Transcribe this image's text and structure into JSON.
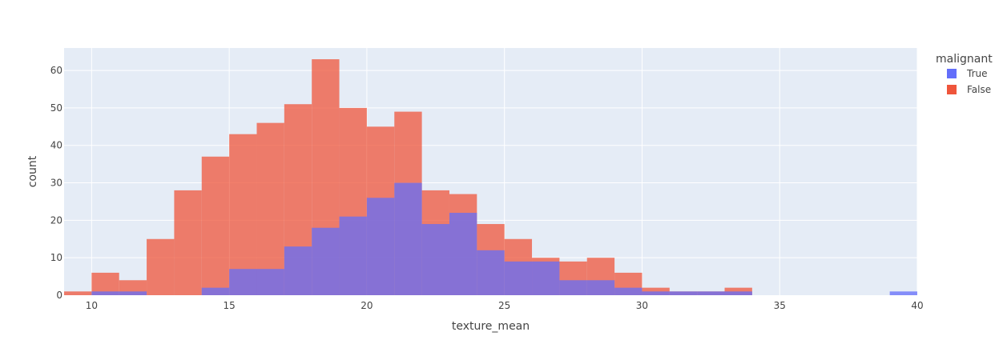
{
  "chart_data": {
    "type": "bar",
    "barmode": "overlay",
    "xlabel": "texture_mean",
    "ylabel": "count",
    "xlim": [
      9,
      40
    ],
    "ylim": [
      0,
      66
    ],
    "x_ticks": [
      10,
      15,
      20,
      25,
      30,
      35,
      40
    ],
    "y_ticks": [
      0,
      10,
      20,
      30,
      40,
      50,
      60
    ],
    "bin_edges": [
      9,
      10,
      11,
      12,
      13,
      14,
      15,
      16,
      17,
      18,
      19,
      20,
      21,
      22,
      23,
      24,
      25,
      26,
      27,
      28,
      29,
      30,
      31,
      32,
      33,
      34,
      35,
      36,
      37,
      38,
      39,
      40
    ],
    "legend_title": "malignant",
    "legend_position": "top-right",
    "grid": true,
    "series": [
      {
        "name": "False",
        "color": "#EF553B",
        "values": [
          1,
          6,
          4,
          15,
          28,
          37,
          43,
          46,
          51,
          63,
          50,
          45,
          49,
          28,
          27,
          19,
          15,
          10,
          9,
          10,
          6,
          2,
          1,
          1,
          2,
          0,
          0,
          0,
          0,
          0,
          0
        ]
      },
      {
        "name": "True",
        "color": "#636EFA",
        "values": [
          0,
          1,
          1,
          0,
          0,
          2,
          7,
          7,
          13,
          18,
          21,
          26,
          30,
          19,
          22,
          12,
          9,
          9,
          4,
          4,
          2,
          1,
          1,
          1,
          1,
          0,
          0,
          0,
          0,
          0,
          1
        ]
      }
    ],
    "legend_order": [
      "True",
      "False"
    ]
  }
}
